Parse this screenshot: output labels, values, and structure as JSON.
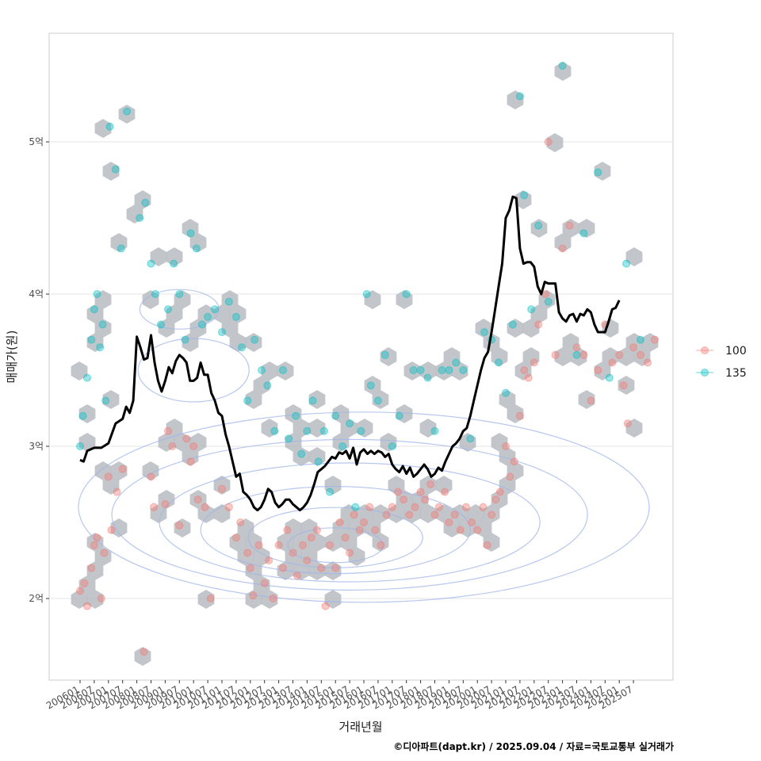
{
  "chart_data": {
    "type": "scatter",
    "xlabel": "거래년월",
    "ylabel": "매매가(원)",
    "x_tick_labels": [
      "200601",
      "200607",
      "200701",
      "200707",
      "200801",
      "200807",
      "200901",
      "200907",
      "201001",
      "201007",
      "201101",
      "201107",
      "201201",
      "201207",
      "201301",
      "201307",
      "201401",
      "201407",
      "201501",
      "201507",
      "201601",
      "201607",
      "201701",
      "201707",
      "201801",
      "201807",
      "201901",
      "201907",
      "202001",
      "202007",
      "202101",
      "202107",
      "202201",
      "202207",
      "202301",
      "202307",
      "202401",
      "202407",
      "202501",
      "202507"
    ],
    "y_ticks": [
      {
        "value": 2,
        "label": "2억"
      },
      {
        "value": 3,
        "label": "3억"
      },
      {
        "value": 4,
        "label": "4억"
      },
      {
        "value": 5,
        "label": "5억"
      }
    ],
    "ylim": [
      1.48,
      5.72
    ],
    "xlim": [
      -3,
      42
    ],
    "grid": true,
    "legend": {
      "position": "right",
      "entries": [
        {
          "label": "100",
          "color": "#F8766D"
        },
        {
          "label": "135",
          "color": "#00BFC4"
        }
      ]
    },
    "series": [
      {
        "name": "100",
        "color": "#F8766D",
        "points": [
          [
            0,
            2.05
          ],
          [
            0.3,
            2.1
          ],
          [
            0.5,
            1.95
          ],
          [
            0.8,
            2.2
          ],
          [
            1,
            2.35
          ],
          [
            1.2,
            2.4
          ],
          [
            1.5,
            2.0
          ],
          [
            1.7,
            2.3
          ],
          [
            2,
            2.8
          ],
          [
            2.2,
            2.45
          ],
          [
            2.6,
            2.7
          ],
          [
            3,
            2.85
          ],
          [
            4.5,
            1.65
          ],
          [
            5,
            2.8
          ],
          [
            5.2,
            2.6
          ],
          [
            6,
            2.62
          ],
          [
            6.2,
            3.1
          ],
          [
            6.5,
            3.0
          ],
          [
            7,
            2.48
          ],
          [
            7.5,
            3.05
          ],
          [
            7.8,
            2.9
          ],
          [
            8,
            3.0
          ],
          [
            8.3,
            2.65
          ],
          [
            8.8,
            2.6
          ],
          [
            9.2,
            2.0
          ],
          [
            10,
            2.72
          ],
          [
            10.5,
            2.6
          ],
          [
            11,
            2.4
          ],
          [
            11.3,
            2.5
          ],
          [
            11.8,
            2.3
          ],
          [
            12,
            2.2
          ],
          [
            12.2,
            2.02
          ],
          [
            12.6,
            2.35
          ],
          [
            13,
            2.1
          ],
          [
            13.3,
            2.25
          ],
          [
            13.6,
            2.0
          ],
          [
            14,
            2.35
          ],
          [
            14.3,
            2.2
          ],
          [
            14.6,
            2.45
          ],
          [
            15,
            2.3
          ],
          [
            15.3,
            2.15
          ],
          [
            15.7,
            2.35
          ],
          [
            16,
            2.25
          ],
          [
            16.3,
            2.4
          ],
          [
            16.7,
            2.45
          ],
          [
            17,
            2.2
          ],
          [
            17.3,
            1.95
          ],
          [
            17.6,
            2.35
          ],
          [
            18,
            2.2
          ],
          [
            18.3,
            2.5
          ],
          [
            18.7,
            2.4
          ],
          [
            19,
            2.3
          ],
          [
            19.3,
            2.55
          ],
          [
            19.7,
            2.45
          ],
          [
            20,
            2.5
          ],
          [
            20.4,
            2.6
          ],
          [
            20.8,
            2.45
          ],
          [
            21.2,
            2.35
          ],
          [
            21.6,
            2.55
          ],
          [
            22,
            2.6
          ],
          [
            22.4,
            2.7
          ],
          [
            22.8,
            2.65
          ],
          [
            23.2,
            2.55
          ],
          [
            23.6,
            2.6
          ],
          [
            24,
            2.7
          ],
          [
            24.3,
            2.65
          ],
          [
            24.7,
            2.75
          ],
          [
            25,
            2.55
          ],
          [
            25.3,
            2.6
          ],
          [
            25.7,
            2.7
          ],
          [
            26,
            2.5
          ],
          [
            26.4,
            2.55
          ],
          [
            26.8,
            2.45
          ],
          [
            27.2,
            2.6
          ],
          [
            27.6,
            2.5
          ],
          [
            28,
            2.45
          ],
          [
            28.4,
            2.6
          ],
          [
            28.7,
            2.35
          ],
          [
            29,
            2.55
          ],
          [
            29.3,
            2.65
          ],
          [
            29.6,
            2.7
          ],
          [
            30,
            3.0
          ],
          [
            30.3,
            2.8
          ],
          [
            30.6,
            2.9
          ],
          [
            31,
            3.2
          ],
          [
            31.3,
            3.5
          ],
          [
            31.6,
            3.45
          ],
          [
            32,
            3.55
          ],
          [
            32.3,
            3.8
          ],
          [
            32.8,
            4.0
          ],
          [
            33,
            5.0
          ],
          [
            33.5,
            3.6
          ],
          [
            34,
            4.3
          ],
          [
            34.5,
            4.45
          ],
          [
            35,
            3.65
          ],
          [
            35.5,
            3.6
          ],
          [
            36,
            3.3
          ],
          [
            36.5,
            3.5
          ],
          [
            37,
            3.8
          ],
          [
            37.5,
            3.55
          ],
          [
            38,
            3.6
          ],
          [
            38.3,
            3.4
          ],
          [
            38.6,
            3.15
          ],
          [
            39,
            3.65
          ],
          [
            39.5,
            3.6
          ],
          [
            40,
            3.55
          ],
          [
            40.5,
            3.7
          ]
        ]
      },
      {
        "name": "135",
        "color": "#00BFC4",
        "points": [
          [
            0,
            3.0
          ],
          [
            0.2,
            3.2
          ],
          [
            0.5,
            3.45
          ],
          [
            0.8,
            3.7
          ],
          [
            1,
            3.9
          ],
          [
            1.2,
            4.0
          ],
          [
            1.4,
            3.65
          ],
          [
            1.6,
            3.8
          ],
          [
            1.8,
            3.3
          ],
          [
            2.1,
            5.1
          ],
          [
            2.5,
            4.82
          ],
          [
            2.9,
            4.3
          ],
          [
            3.3,
            5.2
          ],
          [
            4.2,
            4.5
          ],
          [
            4.6,
            4.6
          ],
          [
            5,
            4.2
          ],
          [
            5.3,
            4.0
          ],
          [
            5.7,
            3.8
          ],
          [
            6.2,
            3.9
          ],
          [
            6.6,
            4.2
          ],
          [
            7,
            4.0
          ],
          [
            7.4,
            3.7
          ],
          [
            7.8,
            4.4
          ],
          [
            8.2,
            4.3
          ],
          [
            8.6,
            3.8
          ],
          [
            9,
            3.85
          ],
          [
            9.5,
            3.9
          ],
          [
            10,
            3.75
          ],
          [
            10.5,
            3.95
          ],
          [
            11,
            3.85
          ],
          [
            11.4,
            3.65
          ],
          [
            11.8,
            3.3
          ],
          [
            12.3,
            3.7
          ],
          [
            12.8,
            3.5
          ],
          [
            13.2,
            3.4
          ],
          [
            13.7,
            3.1
          ],
          [
            14.3,
            3.5
          ],
          [
            14.7,
            3.05
          ],
          [
            15.2,
            3.2
          ],
          [
            15.6,
            2.95
          ],
          [
            16,
            3.1
          ],
          [
            16.4,
            3.3
          ],
          [
            16.8,
            2.9
          ],
          [
            17.2,
            3.1
          ],
          [
            17.6,
            2.7
          ],
          [
            18,
            3.2
          ],
          [
            18.5,
            3.0
          ],
          [
            19,
            3.15
          ],
          [
            19.4,
            2.6
          ],
          [
            19.8,
            3.1
          ],
          [
            20.2,
            4.0
          ],
          [
            20.5,
            3.4
          ],
          [
            21,
            3.3
          ],
          [
            21.5,
            3.6
          ],
          [
            22,
            3.0
          ],
          [
            22.5,
            3.2
          ],
          [
            23,
            4.0
          ],
          [
            23.5,
            3.5
          ],
          [
            24,
            3.5
          ],
          [
            24.5,
            3.45
          ],
          [
            25,
            3.1
          ],
          [
            25.5,
            3.5
          ],
          [
            26,
            3.5
          ],
          [
            26.5,
            3.55
          ],
          [
            27,
            3.5
          ],
          [
            27.5,
            3.05
          ],
          [
            28.5,
            3.75
          ],
          [
            29,
            3.7
          ],
          [
            29.5,
            3.55
          ],
          [
            30,
            3.35
          ],
          [
            30.5,
            3.8
          ],
          [
            31,
            5.3
          ],
          [
            31.3,
            4.65
          ],
          [
            31.8,
            3.9
          ],
          [
            32.3,
            4.45
          ],
          [
            33,
            3.95
          ],
          [
            34,
            5.5
          ],
          [
            35,
            3.6
          ],
          [
            35.5,
            4.4
          ],
          [
            36.5,
            4.8
          ],
          [
            37.3,
            3.45
          ],
          [
            38.5,
            4.2
          ],
          [
            39.5,
            3.7
          ]
        ]
      }
    ],
    "median_line": [
      [
        0,
        2.91
      ],
      [
        0.25,
        2.9
      ],
      [
        0.5,
        2.97
      ],
      [
        1,
        2.99
      ],
      [
        1.5,
        2.99
      ],
      [
        2,
        3.02
      ],
      [
        2.5,
        3.15
      ],
      [
        3,
        3.18
      ],
      [
        3.25,
        3.26
      ],
      [
        3.5,
        3.22
      ],
      [
        3.75,
        3.3
      ],
      [
        4,
        3.72
      ],
      [
        4.25,
        3.65
      ],
      [
        4.5,
        3.57
      ],
      [
        4.75,
        3.58
      ],
      [
        5,
        3.73
      ],
      [
        5.25,
        3.55
      ],
      [
        5.5,
        3.43
      ],
      [
        5.75,
        3.36
      ],
      [
        6,
        3.43
      ],
      [
        6.25,
        3.52
      ],
      [
        6.5,
        3.48
      ],
      [
        6.75,
        3.56
      ],
      [
        7,
        3.6
      ],
      [
        7.25,
        3.58
      ],
      [
        7.5,
        3.55
      ],
      [
        7.75,
        3.43
      ],
      [
        8,
        3.43
      ],
      [
        8.25,
        3.45
      ],
      [
        8.5,
        3.55
      ],
      [
        8.75,
        3.47
      ],
      [
        9,
        3.47
      ],
      [
        9.25,
        3.35
      ],
      [
        9.5,
        3.3
      ],
      [
        9.75,
        3.22
      ],
      [
        10,
        3.2
      ],
      [
        10.25,
        3.08
      ],
      [
        10.5,
        3.0
      ],
      [
        10.75,
        2.9
      ],
      [
        11,
        2.8
      ],
      [
        11.25,
        2.82
      ],
      [
        11.5,
        2.7
      ],
      [
        11.75,
        2.68
      ],
      [
        12,
        2.65
      ],
      [
        12.25,
        2.6
      ],
      [
        12.5,
        2.58
      ],
      [
        12.75,
        2.6
      ],
      [
        13,
        2.65
      ],
      [
        13.25,
        2.72
      ],
      [
        13.5,
        2.7
      ],
      [
        13.75,
        2.63
      ],
      [
        14,
        2.6
      ],
      [
        14.25,
        2.62
      ],
      [
        14.5,
        2.65
      ],
      [
        14.75,
        2.65
      ],
      [
        15,
        2.62
      ],
      [
        15.25,
        2.6
      ],
      [
        15.5,
        2.58
      ],
      [
        15.75,
        2.6
      ],
      [
        16,
        2.63
      ],
      [
        16.25,
        2.68
      ],
      [
        16.5,
        2.75
      ],
      [
        16.75,
        2.83
      ],
      [
        17,
        2.85
      ],
      [
        17.25,
        2.87
      ],
      [
        17.5,
        2.9
      ],
      [
        17.75,
        2.93
      ],
      [
        18,
        2.92
      ],
      [
        18.25,
        2.96
      ],
      [
        18.5,
        2.95
      ],
      [
        18.75,
        2.97
      ],
      [
        19,
        2.92
      ],
      [
        19.25,
        2.99
      ],
      [
        19.5,
        2.88
      ],
      [
        19.75,
        2.96
      ],
      [
        20,
        2.98
      ],
      [
        20.25,
        2.95
      ],
      [
        20.5,
        2.97
      ],
      [
        20.75,
        2.95
      ],
      [
        21,
        2.97
      ],
      [
        21.25,
        2.96
      ],
      [
        21.5,
        2.93
      ],
      [
        21.75,
        2.95
      ],
      [
        22,
        2.88
      ],
      [
        22.25,
        2.85
      ],
      [
        22.5,
        2.83
      ],
      [
        22.75,
        2.87
      ],
      [
        23,
        2.82
      ],
      [
        23.25,
        2.86
      ],
      [
        23.5,
        2.8
      ],
      [
        23.75,
        2.82
      ],
      [
        24,
        2.85
      ],
      [
        24.25,
        2.88
      ],
      [
        24.5,
        2.85
      ],
      [
        24.75,
        2.8
      ],
      [
        25,
        2.82
      ],
      [
        25.25,
        2.86
      ],
      [
        25.5,
        2.84
      ],
      [
        25.75,
        2.9
      ],
      [
        26,
        2.95
      ],
      [
        26.25,
        3.0
      ],
      [
        26.5,
        3.02
      ],
      [
        26.75,
        3.05
      ],
      [
        27,
        3.1
      ],
      [
        27.25,
        3.12
      ],
      [
        27.5,
        3.2
      ],
      [
        27.75,
        3.3
      ],
      [
        28,
        3.4
      ],
      [
        28.25,
        3.5
      ],
      [
        28.5,
        3.58
      ],
      [
        28.75,
        3.62
      ],
      [
        29,
        3.75
      ],
      [
        29.25,
        3.9
      ],
      [
        29.5,
        4.05
      ],
      [
        29.75,
        4.2
      ],
      [
        30,
        4.5
      ],
      [
        30.25,
        4.55
      ],
      [
        30.5,
        4.64
      ],
      [
        30.75,
        4.63
      ],
      [
        31,
        4.3
      ],
      [
        31.25,
        4.2
      ],
      [
        31.5,
        4.21
      ],
      [
        31.75,
        4.21
      ],
      [
        32,
        4.18
      ],
      [
        32.25,
        4.05
      ],
      [
        32.5,
        4.0
      ],
      [
        32.75,
        4.08
      ],
      [
        33,
        4.07
      ],
      [
        33.25,
        4.07
      ],
      [
        33.5,
        4.07
      ],
      [
        33.75,
        3.88
      ],
      [
        34,
        3.84
      ],
      [
        34.25,
        3.82
      ],
      [
        34.5,
        3.86
      ],
      [
        34.75,
        3.87
      ],
      [
        35,
        3.82
      ],
      [
        35.25,
        3.87
      ],
      [
        35.5,
        3.86
      ],
      [
        35.75,
        3.9
      ],
      [
        36,
        3.88
      ],
      [
        36.25,
        3.8
      ],
      [
        36.5,
        3.75
      ],
      [
        36.75,
        3.75
      ],
      [
        37,
        3.75
      ],
      [
        37.25,
        3.82
      ],
      [
        37.5,
        3.9
      ],
      [
        37.75,
        3.91
      ],
      [
        38,
        3.96
      ]
    ]
  },
  "caption": "©디아파트(dapt.kr) / 2025.09.04 / 자료=국토교통부 실거래가"
}
